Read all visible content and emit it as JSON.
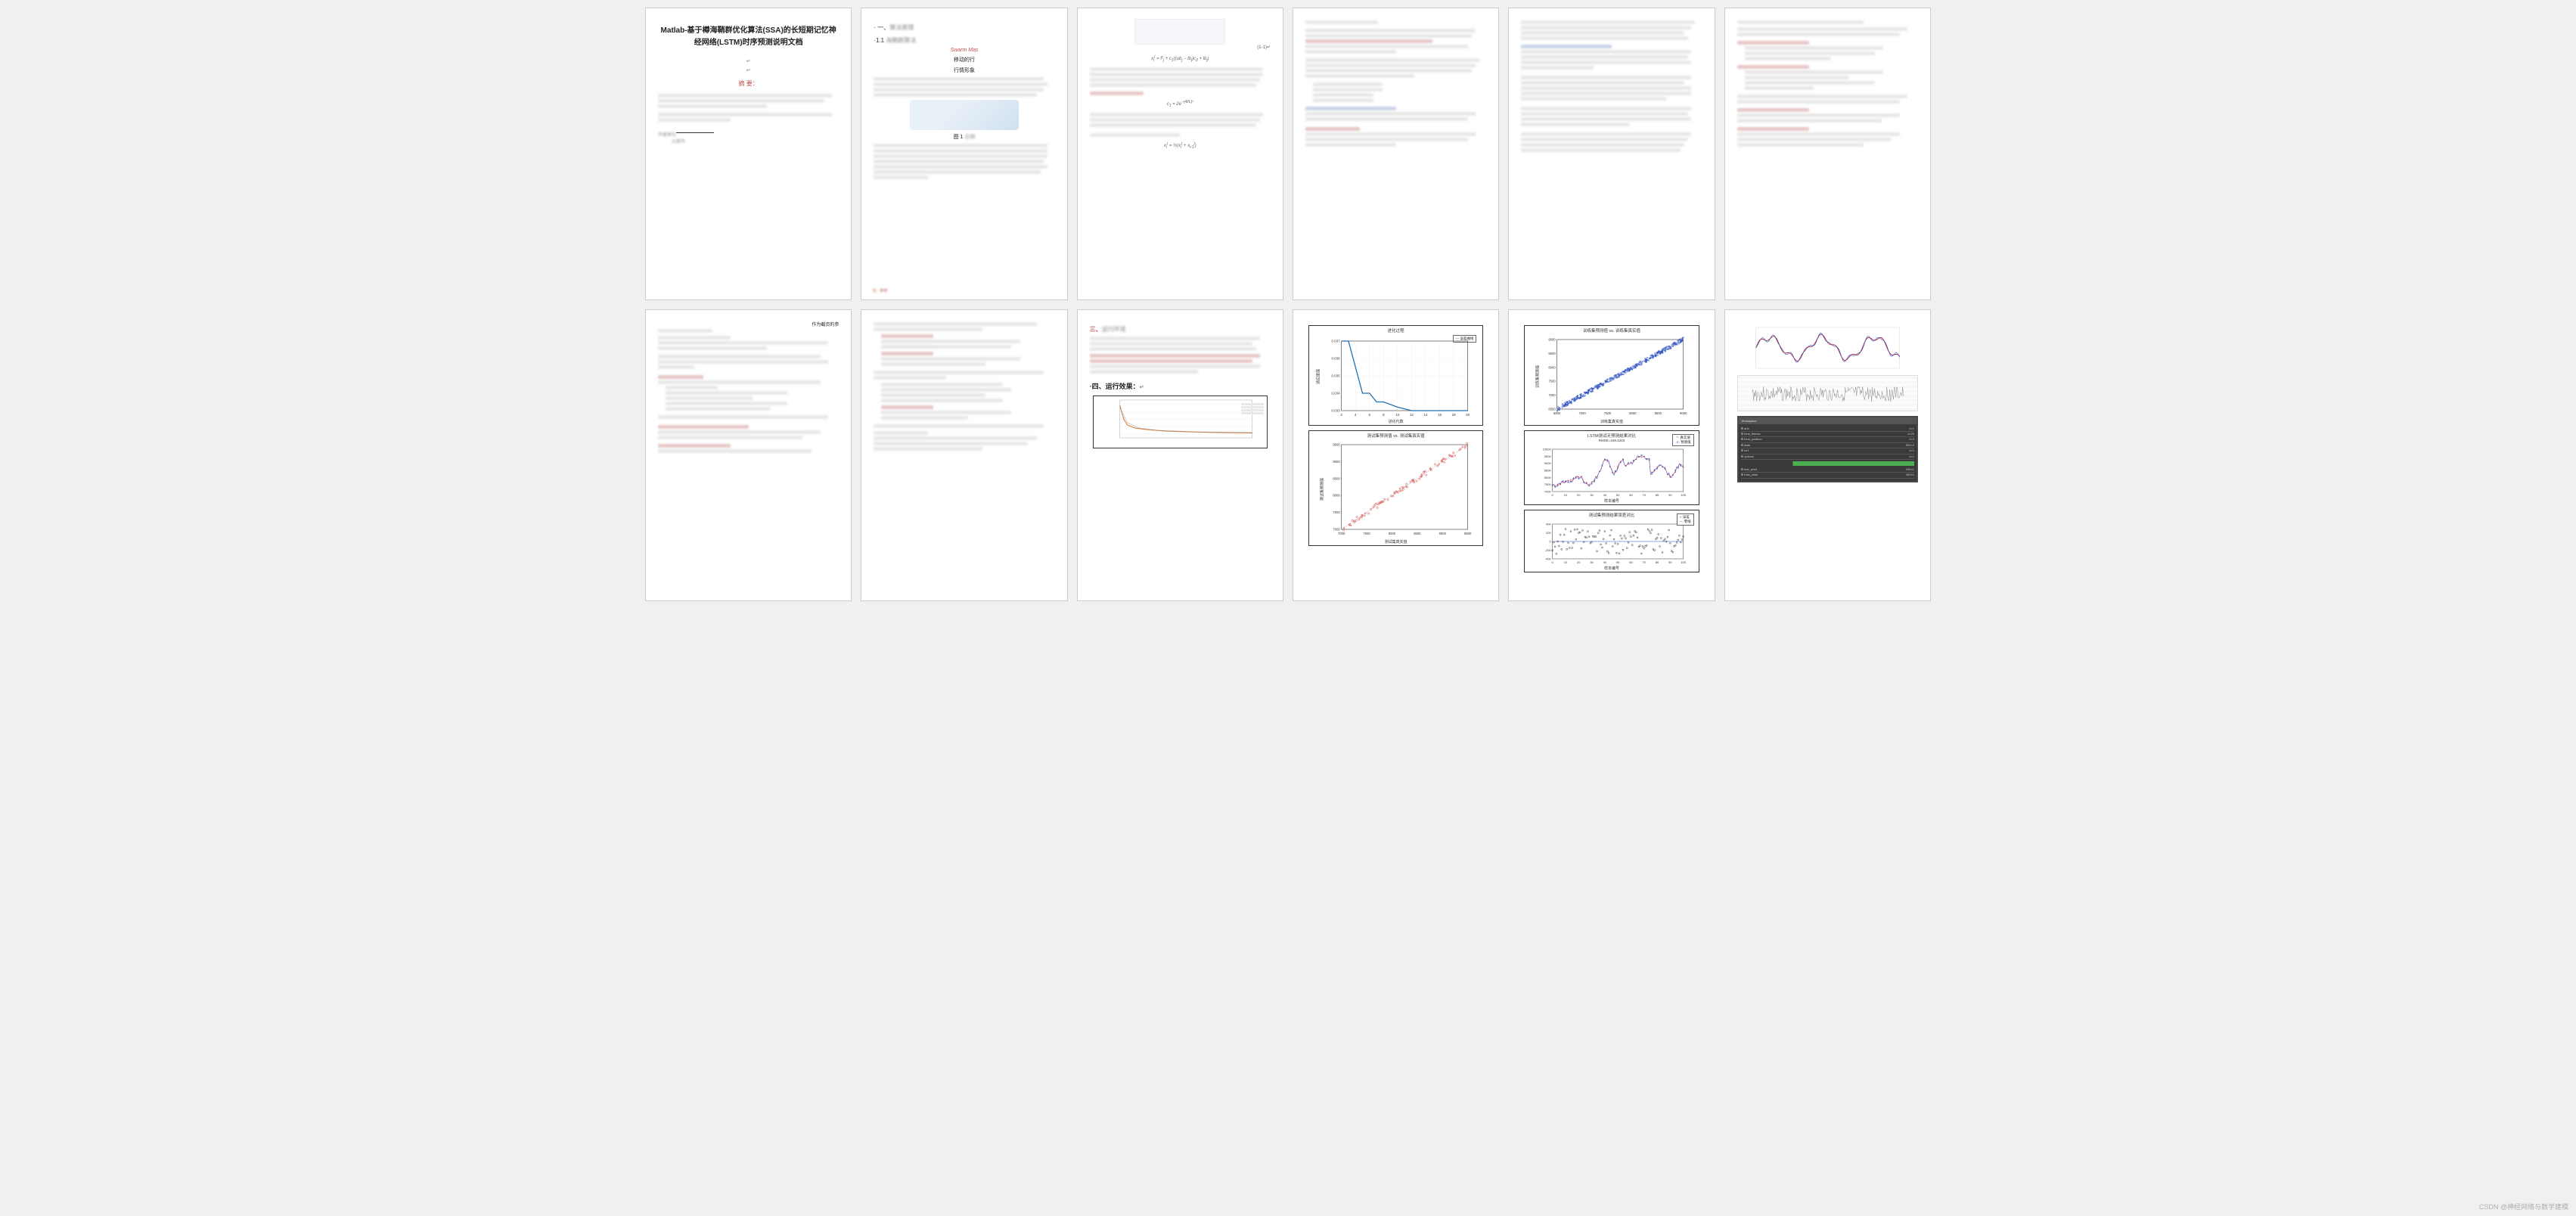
{
  "doc": {
    "title": "Matlab-基于樽海鞘群优化算法(SSA)的长短期记忆神经网络(LSTM)时序预测说明文档",
    "crlf": "↵",
    "abstract_label": "摘 要：",
    "section_1": "一、",
    "section_1_1": "1.1",
    "swarm_red": "Swarm Mas",
    "sub_caption_a": "移动的行",
    "sub_caption_b": "行情形象",
    "fig_label": "图 1",
    "formula_tag_1": "(1-1)↵",
    "run_env": "三、运行环境：",
    "run_fx": "四、运行效果：",
    "handnote_suffix": "作为截页的参"
  },
  "chartA": {
    "title": "进化过程",
    "legend": "误差曲线",
    "xlabel": "进化代数",
    "ylabel": "适应度值",
    "xticks": [
      2,
      4,
      6,
      8,
      10,
      12,
      14,
      16,
      18,
      20
    ],
    "yticks": [
      "0.033",
      "0.034",
      "0.035",
      "0.036",
      "0.037"
    ],
    "line_color": "#1f6fb4",
    "points": [
      [
        2,
        0.037
      ],
      [
        3,
        0.037
      ],
      [
        4,
        0.0355
      ],
      [
        5,
        0.034
      ],
      [
        6,
        0.034
      ],
      [
        7,
        0.0335
      ],
      [
        8,
        0.0335
      ],
      [
        10,
        0.0332
      ],
      [
        12,
        0.033
      ],
      [
        14,
        0.033
      ],
      [
        16,
        0.033
      ],
      [
        18,
        0.033
      ],
      [
        20,
        0.033
      ]
    ]
  },
  "chartB": {
    "title": "测试集预测值 vs. 测试集真实值",
    "xlabel": "测试集真实值",
    "ylabel": "测试集预测值",
    "ticks": [
      7000,
      7500,
      8000,
      8500,
      9000,
      9500
    ],
    "color": "#d84545",
    "n": 90
  },
  "chartC": {
    "title": "训练集预测值 vs. 训练集真实值",
    "xlabel": "训练集真实值",
    "ylabel": "训练集预测值",
    "ticks": [
      6500,
      7000,
      7500,
      8000,
      8500,
      9000
    ],
    "color": "#2a4fc4",
    "n": 420
  },
  "chartD": {
    "title": "LSTM测试无预测结果对比",
    "subtitle": "RMSE=159.4203",
    "xlabel": "样本编号",
    "ylabel": "值",
    "leg1": "真实值",
    "leg2": "预测值",
    "xlim": [
      0,
      100
    ],
    "yticks": [
      7000,
      7500,
      8000,
      8500,
      9000,
      9500,
      10000
    ],
    "color1": "#d84545",
    "color2": "#2a4fc4"
  },
  "chartE": {
    "title": "测试集预测结果误差对比",
    "xlabel": "样本编号",
    "leg1": "误差",
    "leg2": "零线",
    "xlim": [
      0,
      100
    ],
    "yticks": [
      -400,
      -200,
      0,
      200,
      400
    ],
    "color": "#333"
  },
  "chartF": {
    "color1": "#b02030",
    "color2": "#2a4fc4",
    "color3": "#888"
  },
  "loss_chart": {
    "color": "#d87830"
  },
  "watermark": "CSDN @神经网络与数学建模"
}
